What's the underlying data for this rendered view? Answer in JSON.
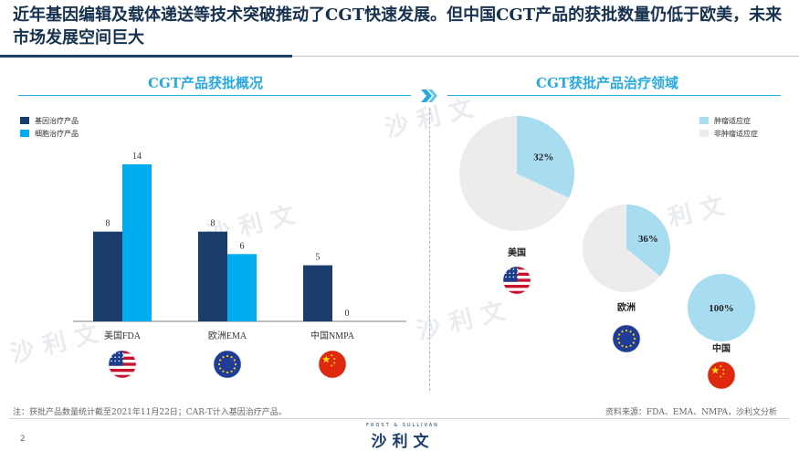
{
  "headline": "近年基因编辑及载体递送等技术突破推动了CGT快速发展。但中国CGT产品的获批数量仍低于欧美，未来市场发展空间巨大",
  "left_title": "CGT产品获批概况",
  "right_title": "CGT获批产品治疗领域",
  "colors": {
    "gene": "#1b3d6b",
    "cell": "#00aeef",
    "tumor": "#a8dcf0",
    "nontumor": "#ececec",
    "title": "#27a9e1"
  },
  "chart_data": [
    {
      "type": "bar",
      "categories": [
        "美国FDA",
        "欧洲EMA",
        "中国NMPA"
      ],
      "series": [
        {
          "name": "基因治疗产品",
          "values": [
            8,
            8,
            5
          ]
        },
        {
          "name": "细胞治疗产品",
          "values": [
            14,
            6,
            0
          ]
        }
      ],
      "legend": "top-left",
      "flags": [
        "us-flag-icon",
        "eu-flag-icon",
        "cn-flag-icon"
      ]
    },
    {
      "type": "pie",
      "legend": [
        "肿瘤适应症",
        "非肿瘤适应症"
      ],
      "regions": [
        {
          "label": "美国",
          "tumor_pct": 32,
          "tumor_label": "32%",
          "flag": "us-flag-icon"
        },
        {
          "label": "欧洲",
          "tumor_pct": 36,
          "tumor_label": "36%",
          "flag": "eu-flag-icon"
        },
        {
          "label": "中国",
          "tumor_pct": 100,
          "tumor_label": "100%",
          "flag": "cn-flag-icon"
        }
      ]
    }
  ],
  "watermark": "沙利文",
  "footnote": "注：获批产品数量统计截至2021年11月22日；CAR-T计入基因治疗产品。",
  "source": "资料来源：FDA、EMA、NMPA，沙利文分析",
  "page_number": "2",
  "brand": {
    "sub": "FROST & SULLIVAN",
    "main": "沙利文"
  }
}
